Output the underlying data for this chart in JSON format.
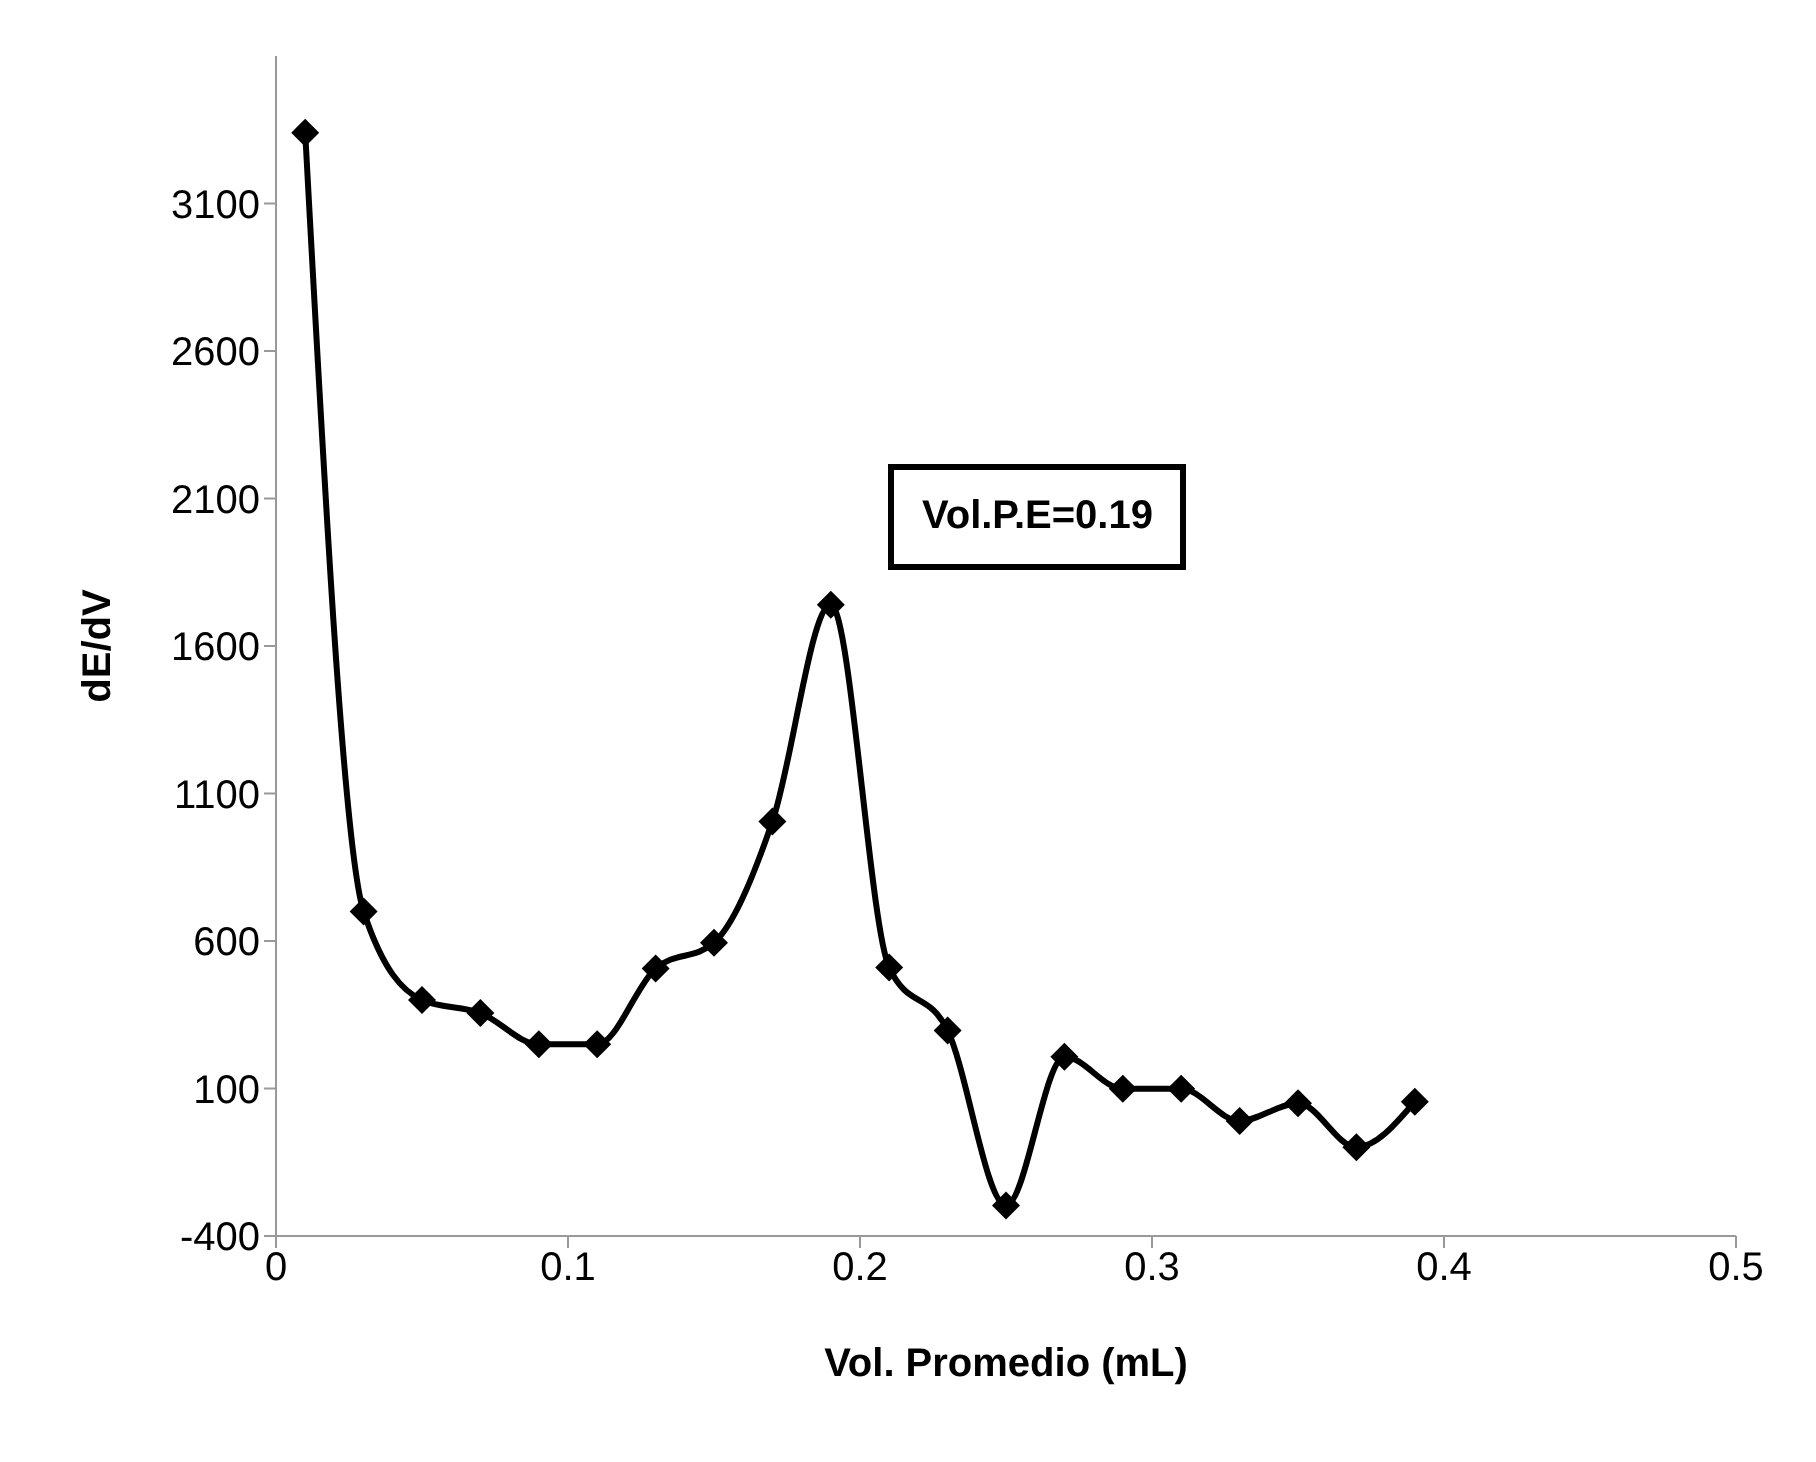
{
  "chart_data": {
    "type": "line",
    "xlabel": "Vol. Promedio (mL)",
    "ylabel": "dE/dV",
    "x": [
      0.01,
      0.03,
      0.05,
      0.07,
      0.09,
      0.11,
      0.13,
      0.15,
      0.17,
      0.19,
      0.21,
      0.23,
      0.25,
      0.27,
      0.29,
      0.31,
      0.33,
      0.35,
      0.37,
      0.39
    ],
    "series": [
      {
        "color": "#000000",
        "values": [
          3340,
          700,
          400,
          356,
          250,
          250,
          507,
          594,
          1005,
          1740,
          510,
          297,
          -297,
          208,
          99,
          99,
          -10,
          50,
          -99,
          55
        ]
      }
    ],
    "xlim": [
      0,
      0.5
    ],
    "xticks": [
      0,
      0.1,
      0.2,
      0.3,
      0.4,
      0.5
    ],
    "ylim": [
      -400,
      3600
    ],
    "yticks": [
      -400,
      100,
      600,
      1100,
      1600,
      2100,
      2600,
      3100
    ],
    "grid": false,
    "marker": "diamond",
    "line_style": "solid",
    "annotations": [
      "Vol.P.E=0.19"
    ]
  }
}
